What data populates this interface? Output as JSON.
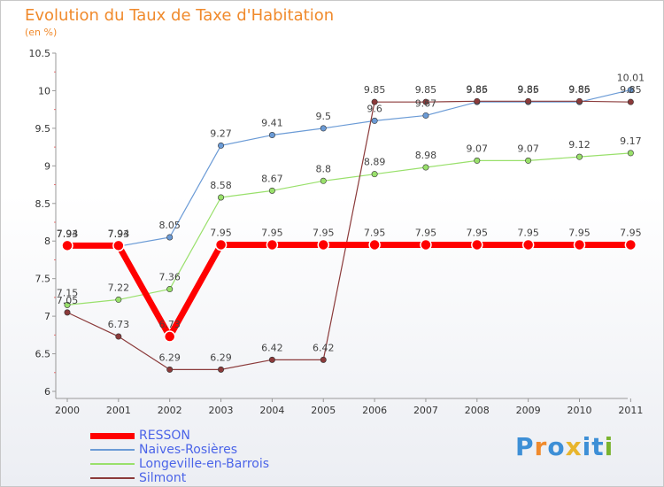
{
  "title": "Evolution du Taux de Taxe d'Habitation",
  "subtitle": "(en %)",
  "logo": {
    "text": "Proxiti",
    "colors": [
      "#3d8fd6",
      "#f08a2c",
      "#3d8fd6",
      "#e8b52c",
      "#3d8fd6",
      "#3d8fd6",
      "#7ab32f"
    ]
  },
  "chart_data": {
    "type": "line",
    "categories": [
      "2000",
      "2001",
      "2002",
      "2003",
      "2004",
      "2005",
      "2006",
      "2007",
      "2008",
      "2009",
      "2010",
      "2011"
    ],
    "ylim": [
      6,
      10.5
    ],
    "yticks": [
      "6",
      "6.5",
      "7",
      "7.5",
      "8",
      "8.5",
      "9",
      "9.5",
      "10",
      "10.5"
    ],
    "grid": false,
    "legend_position": "bottom-left",
    "series": [
      {
        "name": "RESSON",
        "color": "#ff0000",
        "values": [
          7.94,
          7.94,
          6.73,
          7.95,
          7.95,
          7.95,
          7.95,
          7.95,
          7.95,
          7.95,
          7.95,
          7.95
        ],
        "labels": [
          "7.94",
          "7.94",
          "6.73",
          "7.95",
          "7.95",
          "7.95",
          "7.95",
          "7.95",
          "7.95",
          "7.95",
          "7.95",
          "7.95"
        ]
      },
      {
        "name": "Naives-Rosières",
        "color": "#6b9bd6",
        "values": [
          7.93,
          7.93,
          8.05,
          9.27,
          9.41,
          9.5,
          9.6,
          9.67,
          9.85,
          9.85,
          9.85,
          10.01
        ],
        "labels": [
          "7.93",
          "7.93",
          "8.05",
          "9.27",
          "9.41",
          "9.5",
          "9.6",
          "9.67",
          "9.85",
          "9.85",
          "9.85",
          "10.01"
        ]
      },
      {
        "name": "Longeville-en-Barrois",
        "color": "#99e06b",
        "values": [
          7.15,
          7.22,
          7.36,
          8.58,
          8.67,
          8.8,
          8.89,
          8.98,
          9.07,
          9.07,
          9.12,
          9.17
        ],
        "labels": [
          "7.15",
          "7.22",
          "7.36",
          "8.58",
          "8.67",
          "8.8",
          "8.89",
          "8.98",
          "9.07",
          "9.07",
          "9.12",
          "9.17"
        ]
      },
      {
        "name": "Silmont",
        "color": "#8b3a3a",
        "values": [
          7.05,
          6.73,
          6.29,
          6.29,
          6.42,
          6.42,
          9.85,
          9.85,
          9.86,
          9.86,
          9.86,
          9.85
        ],
        "labels": [
          "7.05",
          "6.73",
          "6.29",
          "6.29",
          "6.42",
          "6.42",
          "9.85",
          "9.85",
          "9.86",
          "9.86",
          "9.86",
          "9.85"
        ]
      }
    ]
  }
}
